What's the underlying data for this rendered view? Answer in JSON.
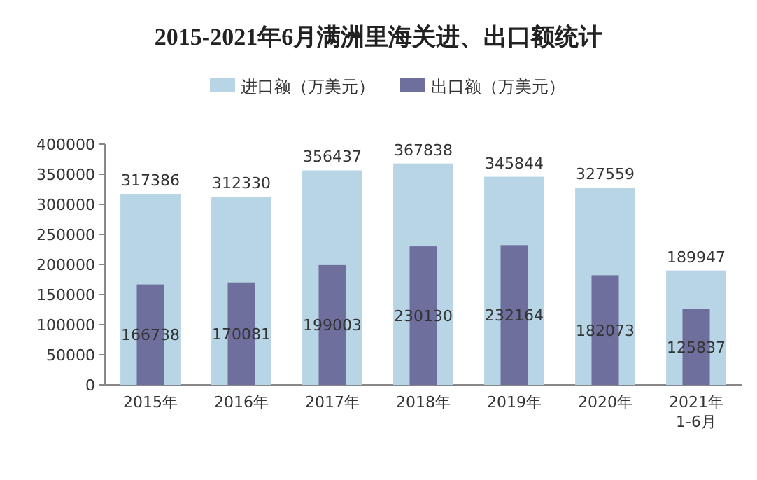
{
  "chart_data": {
    "type": "bar",
    "title": "2015-2021年6月满洲里海关进、出口额统计",
    "categories": [
      "2015年",
      "2016年",
      "2017年",
      "2018年",
      "2019年",
      "2020年",
      "2021年\n1-6月"
    ],
    "series": [
      {
        "name": "进口额（万美元）",
        "color": "#b7d5e5",
        "values": [
          317386,
          312330,
          356437,
          367838,
          345844,
          327559,
          189947
        ]
      },
      {
        "name": "出口额（万美元）",
        "color": "#6e6f9d",
        "values": [
          166738,
          170081,
          199003,
          230130,
          232164,
          182073,
          125837
        ]
      }
    ],
    "ylim": [
      0,
      400000
    ],
    "yticks": [
      0,
      50000,
      100000,
      150000,
      200000,
      250000,
      300000,
      350000,
      400000
    ],
    "data_labels": true,
    "legend": "top",
    "grid": false
  }
}
